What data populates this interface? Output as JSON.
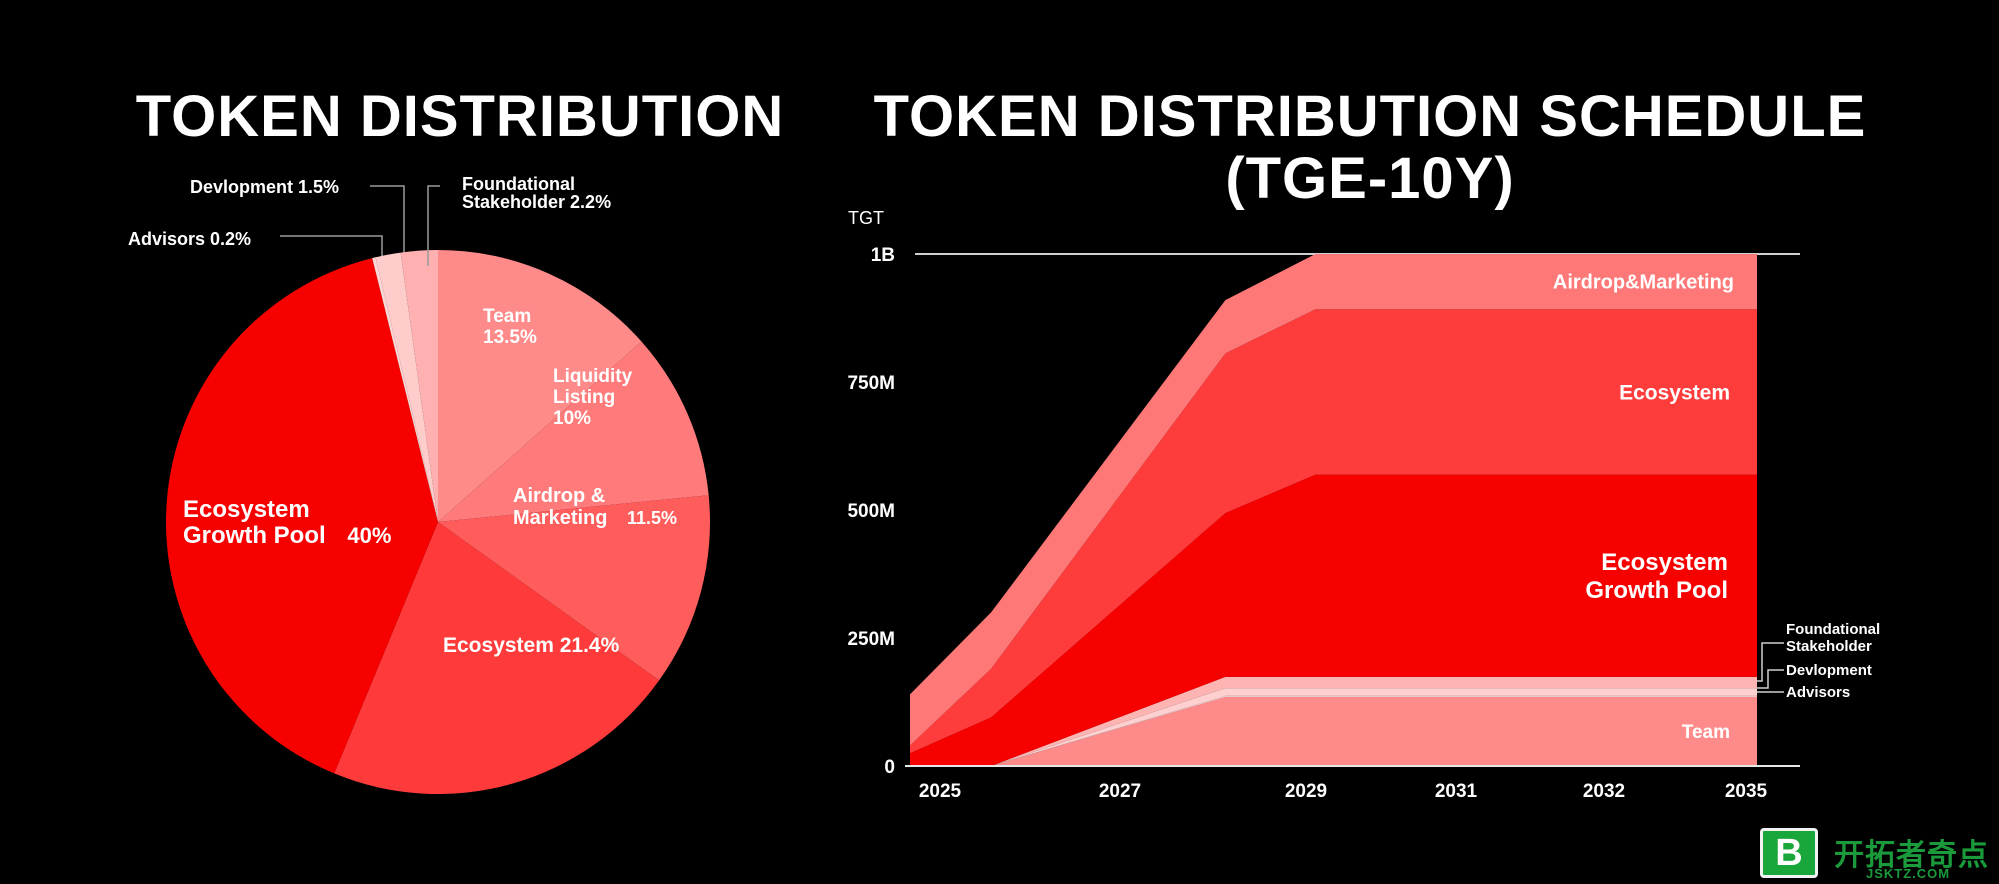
{
  "chart_data": [
    {
      "type": "pie",
      "title": "TOKEN DISTRIBUTION",
      "slices": [
        {
          "label": "Team",
          "value": 13.5,
          "value_label": "13.5%",
          "color": "#ff8a8a"
        },
        {
          "label": "Liquidity Listing",
          "value": 10,
          "value_label": "10%",
          "color": "#ff7b7b"
        },
        {
          "label": "Airdrop & Marketing",
          "value": 11.5,
          "value_label": "11.5%",
          "color": "#ff5c5c"
        },
        {
          "label": "Ecosystem",
          "value": 21.4,
          "value_label": "21.4%",
          "color": "#ff3a3a"
        },
        {
          "label": "Ecosystem Growth Pool",
          "value": 40,
          "value_label": "40%",
          "color": "#f70000"
        },
        {
          "label": "Advisors",
          "value": 0.2,
          "value_label": "0.2%",
          "color": "#ffd6d6"
        },
        {
          "label": "Devlopment",
          "value": 1.5,
          "value_label": "1.5%",
          "color": "#ffcccc"
        },
        {
          "label": "Foundational Stakeholder",
          "value": 2.2,
          "value_label": "2.2%",
          "color": "#ffb0b0"
        }
      ]
    },
    {
      "type": "area",
      "title": "TOKEN DISTRIBUTION SCHEDULE (TGE-10Y)",
      "title_lines": [
        "TOKEN DISTRIBUTION SCHEDULE",
        "(TGE-10Y)"
      ],
      "ylabel": "TGT",
      "y_ticks": [
        "0",
        "250M",
        "500M",
        "750M",
        "1B"
      ],
      "y_tick_values": [
        0,
        250,
        500,
        750,
        1000
      ],
      "ylim": [
        0,
        1000
      ],
      "x_ticks": [
        "2025",
        "2027",
        "2029",
        "2031",
        "2032",
        "2035"
      ],
      "x_tick_values": [
        2025,
        2027,
        2029,
        2031,
        2032,
        2035
      ],
      "xlim": [
        2025,
        2034.4
      ],
      "x": [
        2025,
        2025.9,
        2028.5,
        2029.5,
        2034.4
      ],
      "series": [
        {
          "name": "Team",
          "color": "#ff8a8a",
          "values": [
            0,
            0,
            135,
            135,
            135
          ]
        },
        {
          "name": "Advisors",
          "color": "#ffe0e0",
          "values": [
            0,
            0,
            2,
            2,
            2
          ]
        },
        {
          "name": "Devlopment",
          "color": "#ffd0d0",
          "values": [
            0,
            0,
            15,
            15,
            15
          ]
        },
        {
          "name": "Foundational Stakeholder",
          "color": "#ffb4b4",
          "values": [
            0,
            0,
            22,
            22,
            22
          ]
        },
        {
          "name": "Ecosystem Growth Pool",
          "color": "#f70000",
          "values": [
            25,
            95,
            320,
            395,
            395
          ]
        },
        {
          "name": "Ecosystem",
          "color": "#ff3c3c",
          "values": [
            15,
            95,
            312,
            323,
            323
          ]
        },
        {
          "name": "Airdrop&Marketing",
          "color": "#ff7878",
          "values": [
            100,
            110,
            104,
            108,
            108
          ]
        }
      ],
      "labels": [
        {
          "series": "Airdrop&Marketing",
          "lines": [
            "Airdrop&Marketing"
          ]
        },
        {
          "series": "Ecosystem",
          "lines": [
            "Ecosystem"
          ]
        },
        {
          "series": "Ecosystem Growth Pool",
          "lines": [
            "Ecosystem",
            "Growth Pool"
          ]
        },
        {
          "series": "Team",
          "lines": [
            "Team"
          ]
        }
      ],
      "callouts": [
        {
          "series": "Foundational Stakeholder",
          "lines": [
            "Foundational",
            "Stakeholder"
          ]
        },
        {
          "series": "Devlopment",
          "lines": [
            "Devlopment"
          ]
        },
        {
          "series": "Advisors",
          "lines": [
            "Advisors"
          ]
        }
      ]
    }
  ],
  "watermark": {
    "mark": "B",
    "text": "开拓者奇点",
    "sub": "JSKTZ.COM"
  }
}
